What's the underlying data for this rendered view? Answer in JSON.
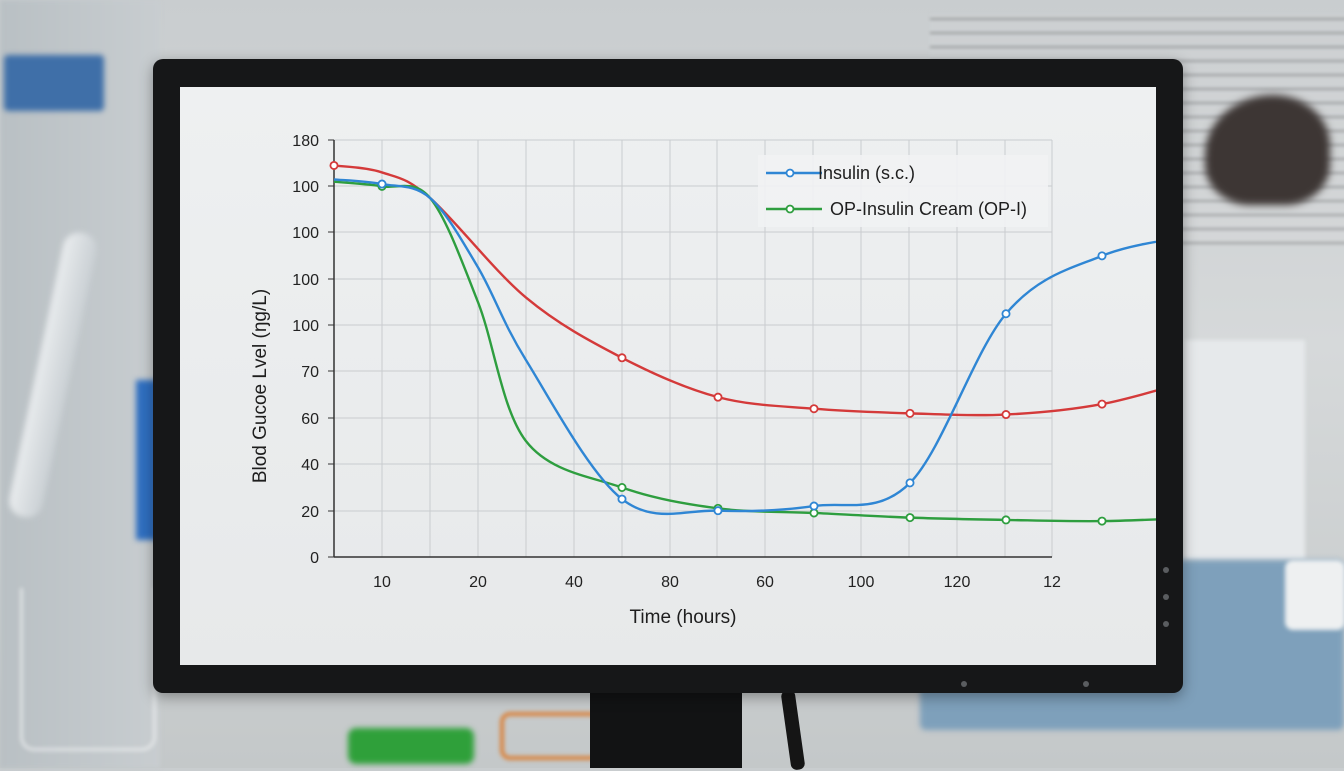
{
  "chart_data": {
    "type": "line",
    "xlabel": "Time (hours)",
    "ylabel": "Blod Gucoe Lvel (ŋg/L)",
    "x_tick_labels": [
      "10",
      "20",
      "40",
      "80",
      "60",
      "100",
      "120",
      "12"
    ],
    "y_tick_labels": [
      "0",
      "20",
      "40",
      "60",
      "70",
      "100",
      "100",
      "100",
      "100",
      "180"
    ],
    "grid": true,
    "legend_position": "top-right",
    "series": [
      {
        "name": "Insulin (s.c.)",
        "color": "#2f86d4",
        "points": [
          {
            "x": 0,
            "y": 163
          },
          {
            "x": 0.5,
            "y": 161
          },
          {
            "x": 1,
            "y": 155
          },
          {
            "x": 1.5,
            "y": 125
          },
          {
            "x": 2,
            "y": 85
          },
          {
            "x": 3,
            "y": 25
          },
          {
            "x": 4,
            "y": 20
          },
          {
            "x": 5,
            "y": 22
          },
          {
            "x": 6,
            "y": 32
          },
          {
            "x": 7,
            "y": 105
          },
          {
            "x": 8,
            "y": 130
          },
          {
            "x": 9,
            "y": 139
          }
        ],
        "markers_at_x": [
          0.5,
          3,
          4,
          5,
          6,
          7,
          8
        ]
      },
      {
        "name": "OP-Insulin Cream (OP-I)",
        "color": "#2e9e3f",
        "points": [
          {
            "x": 0,
            "y": 162
          },
          {
            "x": 0.5,
            "y": 160
          },
          {
            "x": 1,
            "y": 155
          },
          {
            "x": 1.5,
            "y": 110
          },
          {
            "x": 2,
            "y": 50
          },
          {
            "x": 3,
            "y": 30
          },
          {
            "x": 4,
            "y": 21
          },
          {
            "x": 5,
            "y": 19
          },
          {
            "x": 6,
            "y": 17
          },
          {
            "x": 7,
            "y": 16
          },
          {
            "x": 8,
            "y": 15.5
          },
          {
            "x": 9,
            "y": 17
          }
        ],
        "markers_at_x": [
          0.5,
          3,
          4,
          5,
          6,
          7,
          8
        ]
      },
      {
        "name": "",
        "color": "#d43a3a",
        "points": [
          {
            "x": 0,
            "y": 169
          },
          {
            "x": 0.5,
            "y": 166
          },
          {
            "x": 1,
            "y": 155
          },
          {
            "x": 2,
            "y": 112
          },
          {
            "x": 3,
            "y": 86
          },
          {
            "x": 4,
            "y": 69
          },
          {
            "x": 5,
            "y": 64
          },
          {
            "x": 6,
            "y": 62
          },
          {
            "x": 7,
            "y": 61.5
          },
          {
            "x": 8,
            "y": 66
          },
          {
            "x": 9,
            "y": 77
          }
        ],
        "markers_at_x": [
          0,
          3,
          4,
          5,
          6,
          7,
          8
        ]
      }
    ]
  }
}
